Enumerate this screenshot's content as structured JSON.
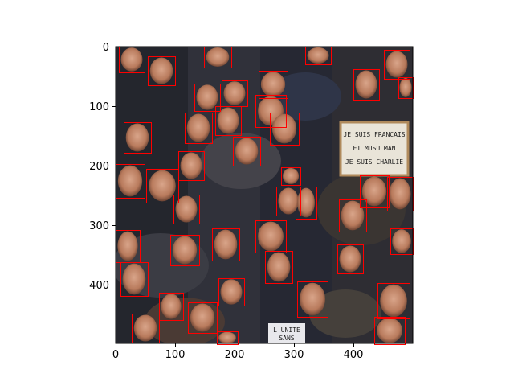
{
  "plot": {
    "x_ticks": [
      "0",
      "100",
      "200",
      "300",
      "400"
    ],
    "y_ticks": [
      "0",
      "100",
      "200",
      "300",
      "400"
    ],
    "box_color": "#ff0000",
    "axis_color": "#000000",
    "face_box_count": 52
  },
  "photo": {
    "sign_lines": [
      "JE SUIS FRANCAIS",
      "ET MUSULMAN",
      "JE SUIS CHARLIE"
    ],
    "small_sign_lines": [
      "L'UNITE",
      "SANS"
    ]
  }
}
